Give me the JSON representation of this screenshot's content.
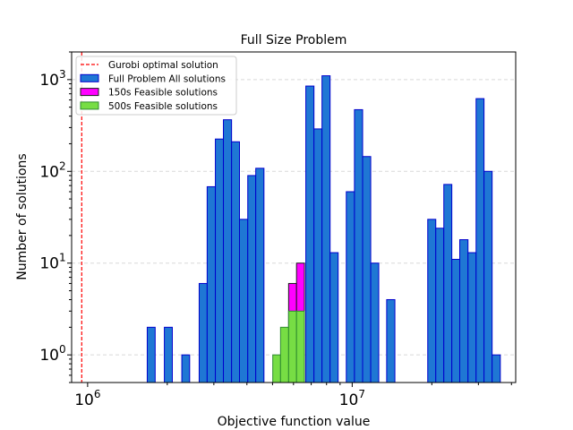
{
  "chart_data": {
    "type": "bar",
    "title": "Full Size Problem",
    "xlabel": "Objective function value",
    "ylabel": "Number of solutions",
    "x_scale": "log",
    "y_scale": "log",
    "xlim": [
      870000,
      41500000
    ],
    "ylim": [
      0.5,
      2000
    ],
    "grid": "y-dashed",
    "legend_position": "top-left",
    "x_tick_labels": [
      {
        "value": 1000000,
        "base": "10",
        "exp": "6"
      },
      {
        "value": 10000000,
        "base": "10",
        "exp": "7"
      }
    ],
    "y_tick_labels": [
      {
        "value": 1,
        "base": "10",
        "exp": "0"
      },
      {
        "value": 10,
        "base": "10",
        "exp": "1"
      },
      {
        "value": 100,
        "base": "10",
        "exp": "2"
      },
      {
        "value": 1000,
        "base": "10",
        "exp": "3"
      }
    ],
    "reference_line": {
      "name": "Gurobi optimal solution",
      "x": 950000,
      "color": "#ff0000"
    },
    "series": [
      {
        "name": "Full Problem All solutions",
        "fill": "#1f77d4",
        "edge": "#0000cc",
        "bins": [
          {
            "x0": 1680000,
            "x1": 1800000,
            "count": 2
          },
          {
            "x0": 1950000,
            "x1": 2090000,
            "count": 2
          },
          {
            "x0": 2270000,
            "x1": 2430000,
            "count": 1
          },
          {
            "x0": 2640000,
            "x1": 2830000,
            "count": 6
          },
          {
            "x0": 2830000,
            "x1": 3040000,
            "count": 68
          },
          {
            "x0": 3040000,
            "x1": 3260000,
            "count": 225
          },
          {
            "x0": 3260000,
            "x1": 3500000,
            "count": 365
          },
          {
            "x0": 3500000,
            "x1": 3750000,
            "count": 210
          },
          {
            "x0": 3750000,
            "x1": 4030000,
            "count": 30
          },
          {
            "x0": 4030000,
            "x1": 4320000,
            "count": 90
          },
          {
            "x0": 4320000,
            "x1": 4640000,
            "count": 108
          },
          {
            "x0": 6680000,
            "x1": 7170000,
            "count": 850
          },
          {
            "x0": 7170000,
            "x1": 7690000,
            "count": 290
          },
          {
            "x0": 7690000,
            "x1": 8250000,
            "count": 1100
          },
          {
            "x0": 8250000,
            "x1": 8850000,
            "count": 13
          },
          {
            "x0": 9500000,
            "x1": 10200000,
            "count": 60
          },
          {
            "x0": 10200000,
            "x1": 10950000,
            "count": 470
          },
          {
            "x0": 10950000,
            "x1": 11750000,
            "count": 145
          },
          {
            "x0": 11750000,
            "x1": 12600000,
            "count": 10
          },
          {
            "x0": 13500000,
            "x1": 14500000,
            "count": 4
          },
          {
            "x0": 19300000,
            "x1": 20700000,
            "count": 30
          },
          {
            "x0": 20700000,
            "x1": 22200000,
            "count": 24
          },
          {
            "x0": 22200000,
            "x1": 23800000,
            "count": 72
          },
          {
            "x0": 23800000,
            "x1": 25500000,
            "count": 11
          },
          {
            "x0": 25500000,
            "x1": 27400000,
            "count": 18
          },
          {
            "x0": 27400000,
            "x1": 29400000,
            "count": 13
          },
          {
            "x0": 29400000,
            "x1": 31500000,
            "count": 620
          },
          {
            "x0": 31500000,
            "x1": 33800000,
            "count": 100
          },
          {
            "x0": 33800000,
            "x1": 36300000,
            "count": 1
          }
        ]
      },
      {
        "name": "150s Feasible solutions",
        "fill": "#ff00ff",
        "edge": "#1a1a1a",
        "bins": [
          {
            "x0": 5750000,
            "x1": 6160000,
            "count": 6
          },
          {
            "x0": 6160000,
            "x1": 6600000,
            "count": 10
          }
        ]
      },
      {
        "name": "500s Feasible solutions",
        "fill": "#77dd44",
        "edge": "#2e8b2e",
        "bins": [
          {
            "x0": 5010000,
            "x1": 5360000,
            "count": 1
          },
          {
            "x0": 5360000,
            "x1": 5750000,
            "count": 2
          },
          {
            "x0": 5750000,
            "x1": 6160000,
            "count": 3
          },
          {
            "x0": 6160000,
            "x1": 6600000,
            "count": 3
          }
        ]
      }
    ]
  }
}
